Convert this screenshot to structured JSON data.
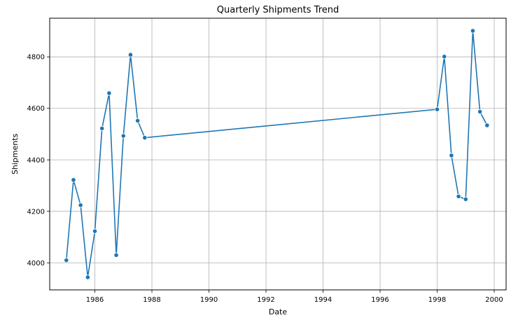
{
  "chart_data": {
    "type": "line",
    "title": "Quarterly Shipments Trend",
    "xlabel": "Date",
    "ylabel": "Shipments",
    "xlim": [
      "1984-06-01",
      "2000-06-01"
    ],
    "ylim": [
      3895,
      4950
    ],
    "x_ticks": [
      "1986",
      "1988",
      "1990",
      "1992",
      "1994",
      "1996",
      "1998",
      "2000"
    ],
    "y_ticks": [
      4000,
      4200,
      4400,
      4600,
      4800
    ],
    "grid": true,
    "line_color": "#1f77b4",
    "series": [
      {
        "x": [
          "1985-01-01",
          "1985-04-01",
          "1985-07-01",
          "1985-10-01",
          "1986-01-01",
          "1986-04-01",
          "1986-07-01",
          "1986-10-01",
          "1987-01-01",
          "1987-04-01",
          "1987-07-01",
          "1987-10-01",
          "1998-01-01",
          "1998-04-01",
          "1998-07-01",
          "1998-10-01",
          "1999-01-01",
          "1999-04-01",
          "1999-07-01",
          "1999-10-01"
        ],
        "values": [
          4010,
          4322,
          4224,
          3944,
          4123,
          4522,
          4659,
          4030,
          4493,
          4808,
          4552,
          4486,
          4596,
          4801,
          4417,
          4258,
          4247,
          4901,
          4587,
          4534
        ]
      }
    ]
  }
}
